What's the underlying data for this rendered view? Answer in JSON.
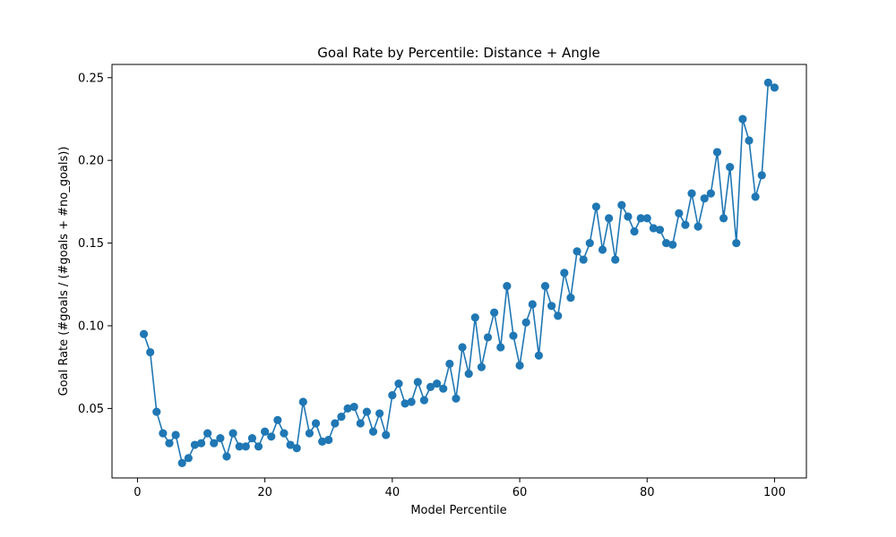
{
  "chart_data": {
    "type": "line",
    "title": "Goal Rate by Percentile: Distance + Angle",
    "xlabel": "Model Percentile",
    "ylabel": "Goal Rate (#goals / (#goals + #no_goals))",
    "xlim": [
      -4,
      105
    ],
    "ylim": [
      0.008,
      0.258
    ],
    "xticks": [
      0,
      20,
      40,
      60,
      80,
      100
    ],
    "yticks": [
      0.05,
      0.1,
      0.15,
      0.2,
      0.25
    ],
    "ytick_labels": [
      "0.05",
      "0.10",
      "0.15",
      "0.20",
      "0.25"
    ],
    "grid": false,
    "legend": "none",
    "series": [
      {
        "color": "#1f77b4",
        "marker": "circle",
        "x": [
          1,
          2,
          3,
          4,
          5,
          6,
          7,
          8,
          9,
          10,
          11,
          12,
          13,
          14,
          15,
          16,
          17,
          18,
          19,
          20,
          21,
          22,
          23,
          24,
          25,
          26,
          27,
          28,
          29,
          30,
          31,
          32,
          33,
          34,
          35,
          36,
          37,
          38,
          39,
          40,
          41,
          42,
          43,
          44,
          45,
          46,
          47,
          48,
          49,
          50,
          51,
          52,
          53,
          54,
          55,
          56,
          57,
          58,
          59,
          60,
          61,
          62,
          63,
          64,
          65,
          66,
          67,
          68,
          69,
          70,
          71,
          72,
          73,
          74,
          75,
          76,
          77,
          78,
          79,
          80,
          81,
          82,
          83,
          84,
          85,
          86,
          87,
          88,
          89,
          90,
          91,
          92,
          93,
          94,
          95,
          96,
          97,
          98,
          99,
          100
        ],
        "y": [
          0.095,
          0.084,
          0.048,
          0.035,
          0.029,
          0.034,
          0.017,
          0.02,
          0.028,
          0.029,
          0.035,
          0.029,
          0.032,
          0.021,
          0.035,
          0.027,
          0.027,
          0.032,
          0.027,
          0.036,
          0.033,
          0.043,
          0.035,
          0.028,
          0.026,
          0.054,
          0.035,
          0.041,
          0.03,
          0.031,
          0.041,
          0.045,
          0.05,
          0.051,
          0.041,
          0.048,
          0.036,
          0.047,
          0.034,
          0.058,
          0.065,
          0.053,
          0.054,
          0.066,
          0.055,
          0.063,
          0.065,
          0.062,
          0.077,
          0.056,
          0.087,
          0.071,
          0.105,
          0.075,
          0.093,
          0.108,
          0.087,
          0.124,
          0.094,
          0.076,
          0.102,
          0.113,
          0.082,
          0.124,
          0.112,
          0.106,
          0.132,
          0.117,
          0.145,
          0.14,
          0.15,
          0.172,
          0.146,
          0.165,
          0.14,
          0.173,
          0.166,
          0.157,
          0.165,
          0.165,
          0.159,
          0.158,
          0.15,
          0.149,
          0.168,
          0.161,
          0.18,
          0.16,
          0.177,
          0.18,
          0.205,
          0.165,
          0.196,
          0.15,
          0.225,
          0.212,
          0.178,
          0.191,
          0.247,
          0.244
        ]
      }
    ]
  }
}
